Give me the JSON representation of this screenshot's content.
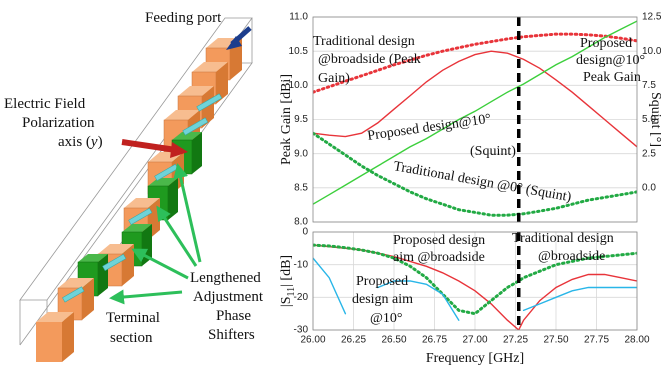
{
  "diagram": {
    "labels": [
      "Feeding port",
      "Electric Field",
      "Polarization",
      "axis (",
      "y",
      ")",
      "Lengthened",
      "Adjustment",
      "Phase",
      "Shifters",
      "Terminal",
      "section"
    ]
  },
  "chart_data": [
    {
      "type": "line",
      "xlim": [
        26,
        28
      ],
      "ylabel": "Peak Gain [dBi]",
      "y2label": "Squint [°]",
      "ylim": [
        8,
        11
      ],
      "yticks": [
        {
          "value": 8,
          "label": "8.0"
        },
        8.5,
        {
          "value": 9,
          "label": "9.0"
        },
        9.5,
        {
          "value": 10,
          "label": "10.0"
        },
        10.5,
        {
          "value": 11,
          "label": "11.0"
        }
      ],
      "y2lim": [
        -2.5,
        12.5
      ],
      "y2ticks": [
        {
          "value": 0,
          "label": "0.0"
        },
        2.5,
        {
          "value": 5,
          "label": "5.0"
        },
        7.5,
        {
          "value": 10,
          "label": "10.0"
        },
        12.5
      ],
      "grid": true,
      "vline": 27.27,
      "x": [
        26.0,
        26.1,
        26.2,
        26.3,
        26.4,
        26.5,
        26.6,
        26.7,
        26.8,
        26.9,
        27.0,
        27.1,
        27.2,
        27.3,
        27.4,
        27.5,
        27.6,
        27.7,
        27.8,
        27.9,
        28.0
      ],
      "series": [
        {
          "color": "#e8343a",
          "linestyle": "solid",
          "values": [
            9.3,
            9.27,
            9.25,
            9.3,
            9.45,
            9.65,
            9.85,
            10.05,
            10.22,
            10.35,
            10.45,
            10.5,
            10.47,
            10.38,
            10.25,
            10.08,
            9.9,
            9.7,
            9.5,
            9.3,
            9.1
          ]
        },
        {
          "color": "#e8343a",
          "linestyle": "dotted",
          "values": [
            9.9,
            9.98,
            10.06,
            10.14,
            10.22,
            10.3,
            10.37,
            10.44,
            10.5,
            10.55,
            10.6,
            10.64,
            10.68,
            10.71,
            10.73,
            10.75,
            10.75,
            10.74,
            10.72,
            10.69,
            10.65
          ]
        },
        {
          "color": "#3ccf3c",
          "linestyle": "solid",
          "axis": "y2",
          "values": [
            -1.2,
            -0.5,
            0.2,
            0.9,
            1.6,
            2.3,
            3.0,
            3.6,
            4.3,
            5.0,
            5.6,
            6.3,
            7.0,
            7.6,
            8.3,
            9.0,
            9.6,
            10.3,
            11.0,
            11.6,
            12.2
          ]
        },
        {
          "color": "#22aa44",
          "linestyle": "dotted",
          "axis": "y2",
          "values": [
            4.0,
            3.2,
            2.4,
            1.6,
            0.9,
            0.3,
            -0.3,
            -0.8,
            -1.2,
            -1.6,
            -1.8,
            -2.0,
            -2.0,
            -1.9,
            -1.7,
            -1.5,
            -1.2,
            -0.9,
            -0.7,
            -0.5,
            -0.3
          ]
        }
      ],
      "annotations": [
        "Traditional design",
        "@broadside (Peak",
        "Gain)",
        "Proposed",
        "design@10°",
        "Peak Gain",
        "Proposed design@10°",
        "(Squint)",
        "Traditional design @0° (Squint)"
      ]
    },
    {
      "type": "line",
      "xlim": [
        26,
        28
      ],
      "xticks": [
        {
          "value": 26,
          "label": "26.00"
        },
        26.25,
        {
          "value": 26.5,
          "label": "26.50"
        },
        26.75,
        {
          "value": 27,
          "label": "27.00"
        },
        27.25,
        {
          "value": 27.5,
          "label": "27.50"
        },
        27.75,
        {
          "value": 28,
          "label": "28.00"
        }
      ],
      "xlabel": "Frequency [GHz]",
      "ylabel_parts": [
        "|S",
        "11",
        "| [dB]"
      ],
      "ylim": [
        -30,
        0
      ],
      "yticks": [
        -30,
        -20,
        -10,
        0
      ],
      "grid": true,
      "vline": 27.27,
      "x": [
        26.0,
        26.1,
        26.2,
        26.3,
        26.4,
        26.5,
        26.6,
        26.7,
        26.8,
        26.9,
        27.0,
        27.1,
        27.2,
        27.27,
        27.3,
        27.4,
        27.5,
        27.6,
        27.7,
        27.8,
        27.9,
        28.0
      ],
      "series": [
        {
          "color": "#e8343a",
          "linestyle": "solid",
          "values": [
            -4,
            -4.5,
            -5,
            -5.5,
            -6.5,
            -7.5,
            -9,
            -10.5,
            -12.5,
            -15,
            -18,
            -22,
            -27,
            -30,
            -27,
            -21,
            -17,
            -14.5,
            -13,
            -13,
            -14,
            -15
          ]
        },
        {
          "color": "#22aa44",
          "linestyle": "dotted",
          "values": [
            -4,
            -4.3,
            -4.8,
            -5.5,
            -6.5,
            -8,
            -10.5,
            -14,
            -19,
            -24,
            -25,
            -21,
            -17,
            -15,
            -14,
            -12,
            -10,
            -9,
            -8,
            -7.5,
            -7,
            -6.5
          ]
        },
        {
          "color": "#29b6e8",
          "linestyle": "solid",
          "values": [
            -8,
            -14,
            -25,
            null,
            -17,
            -15,
            -15,
            -16,
            -19,
            -27,
            null,
            null,
            null,
            null,
            -24,
            -22,
            -20,
            -18,
            -17,
            -17,
            -17,
            -17
          ]
        }
      ],
      "annotations": [
        "Proposed design",
        "aim @broadside",
        "Traditional design",
        "@broadside",
        "Proposed",
        "design aim",
        "@10°"
      ]
    }
  ]
}
